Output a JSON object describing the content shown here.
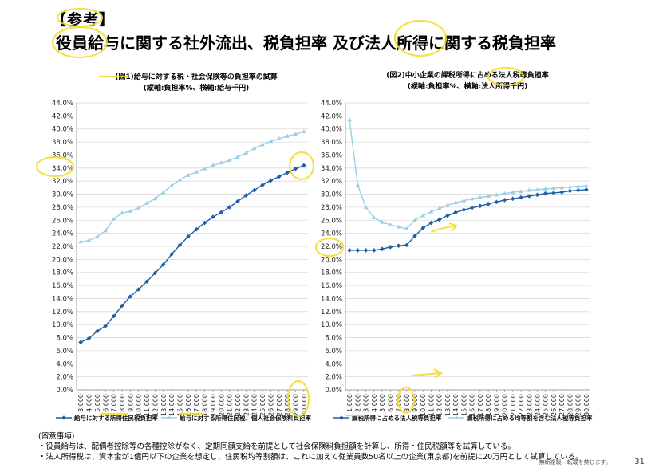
{
  "header": {
    "ref_label": "【参考】",
    "title": "役員給与に関する社外流出、税負担率  及び法人所得に関する税負担率"
  },
  "chart_data": [
    {
      "type": "line",
      "title": "(図1)給与に対する税・社会保険等の負担率の試算",
      "subtitle": "(縦軸:負担率%、横軸:給与千円)",
      "xlabel": "給与千円",
      "ylabel": "負担率%",
      "ylim": [
        0,
        44
      ],
      "ytick_step": 2,
      "ytick_labels": [
        "0.0%",
        "2.0%",
        "4.0%",
        "6.0%",
        "8.0%",
        "10.0%",
        "12.0%",
        "14.0%",
        "16.0%",
        "18.0%",
        "20.0%",
        "22.0%",
        "24.0%",
        "26.0%",
        "28.0%",
        "30.0%",
        "32.0%",
        "34.0%",
        "36.0%",
        "38.0%",
        "40.0%",
        "42.0%",
        "44.0%"
      ],
      "categories": [
        "3,000",
        "4,000",
        "5,000",
        "6,000",
        "7,000",
        "8,000",
        "9,000",
        "10,000",
        "11,000",
        "12,000",
        "13,000",
        "14,000",
        "15,000",
        "16,000",
        "17,000",
        "18,000",
        "19,000",
        "20,000",
        "21,000",
        "22,000",
        "23,000",
        "24,000",
        "25,000",
        "26,000",
        "27,000",
        "28,000",
        "29,000",
        "30,000"
      ],
      "grid": true,
      "legend_position": "bottom",
      "series": [
        {
          "name": "給与に対する所得住民税負担率",
          "color": "#1f5fa8",
          "marker": "diamond",
          "values": [
            7.3,
            7.9,
            9.0,
            9.8,
            11.3,
            12.9,
            14.3,
            15.4,
            16.6,
            17.9,
            19.2,
            20.8,
            22.2,
            23.5,
            24.6,
            25.6,
            26.5,
            27.2,
            28.0,
            28.9,
            29.8,
            30.6,
            31.4,
            32.1,
            32.7,
            33.3,
            33.9,
            34.4
          ]
        },
        {
          "name": "給与に対する所得住民税、個人社会保険料負担率",
          "color": "#9ccfe6",
          "marker": "triangle",
          "values": [
            22.7,
            22.9,
            23.5,
            24.4,
            26.2,
            27.1,
            27.4,
            27.9,
            28.6,
            29.3,
            30.3,
            31.3,
            32.2,
            32.9,
            33.4,
            33.9,
            34.4,
            34.8,
            35.2,
            35.7,
            36.3,
            37.0,
            37.6,
            38.1,
            38.5,
            38.9,
            39.2,
            39.6
          ]
        }
      ]
    },
    {
      "type": "line",
      "title": "(図2)中小企業の課税所得に占める法人税等負担率",
      "subtitle": "(縦軸:負担率%、横軸:法人所得千円)",
      "xlabel": "法人所得千円",
      "ylabel": "負担率%",
      "ylim": [
        0,
        44
      ],
      "ytick_step": 2,
      "ytick_labels": [
        "0.0%",
        "2.0%",
        "4.0%",
        "6.0%",
        "8.0%",
        "10.0%",
        "12.0%",
        "14.0%",
        "16.0%",
        "18.0%",
        "20.0%",
        "22.0%",
        "24.0%",
        "26.0%",
        "28.0%",
        "30.0%",
        "32.0%",
        "34.0%",
        "36.0%",
        "38.0%",
        "40.0%",
        "42.0%",
        "44.0%"
      ],
      "categories": [
        "1,000",
        "2,000",
        "3,000",
        "4,000",
        "5,000",
        "6,000",
        "7,000",
        "8,000",
        "9,000",
        "10,000",
        "11,000",
        "12,000",
        "13,000",
        "14,000",
        "15,000",
        "16,000",
        "17,000",
        "18,000",
        "19,000",
        "20,000",
        "21,000",
        "22,000",
        "23,000",
        "24,000",
        "25,000",
        "26,000",
        "27,000",
        "28,000",
        "29,000",
        "30,000"
      ],
      "grid": true,
      "legend_position": "bottom",
      "series": [
        {
          "name": "課税所得に占める法人税等負担率",
          "color": "#1f5fa8",
          "marker": "diamond",
          "values": [
            21.4,
            21.4,
            21.4,
            21.4,
            21.6,
            21.9,
            22.1,
            22.2,
            23.6,
            24.8,
            25.6,
            26.1,
            26.7,
            27.2,
            27.6,
            27.9,
            28.2,
            28.5,
            28.8,
            29.1,
            29.3,
            29.5,
            29.7,
            29.9,
            30.1,
            30.2,
            30.3,
            30.5,
            30.6,
            30.7
          ]
        },
        {
          "name": "課税所得に占める均等割を含む法人税等負担率",
          "color": "#9ccfe6",
          "marker": "triangle",
          "values": [
            41.4,
            31.4,
            28.0,
            26.4,
            25.7,
            25.3,
            25.0,
            24.7,
            26.0,
            26.7,
            27.3,
            27.8,
            28.3,
            28.7,
            29.0,
            29.3,
            29.5,
            29.7,
            29.9,
            30.1,
            30.3,
            30.4,
            30.6,
            30.7,
            30.8,
            30.9,
            31.0,
            31.1,
            31.2,
            31.3
          ]
        }
      ]
    }
  ],
  "notes": {
    "heading": "(留意事項)",
    "line1": "・役員給与は、配偶者控除等の各種控除がなく、定期同額支給を前提として社会保険料負担額を計算し、所得・住民税額等を試算している。",
    "line2": "・法人所得税は、資本金が1億円以下の企業を想定し、住民税均等割額は、これに加えて従業員数50名以上の企業(東京都)を前提に20万円として試算している。"
  },
  "footer": {
    "copyright": "無断複製・転載を禁じます。",
    "page_number": "31"
  }
}
